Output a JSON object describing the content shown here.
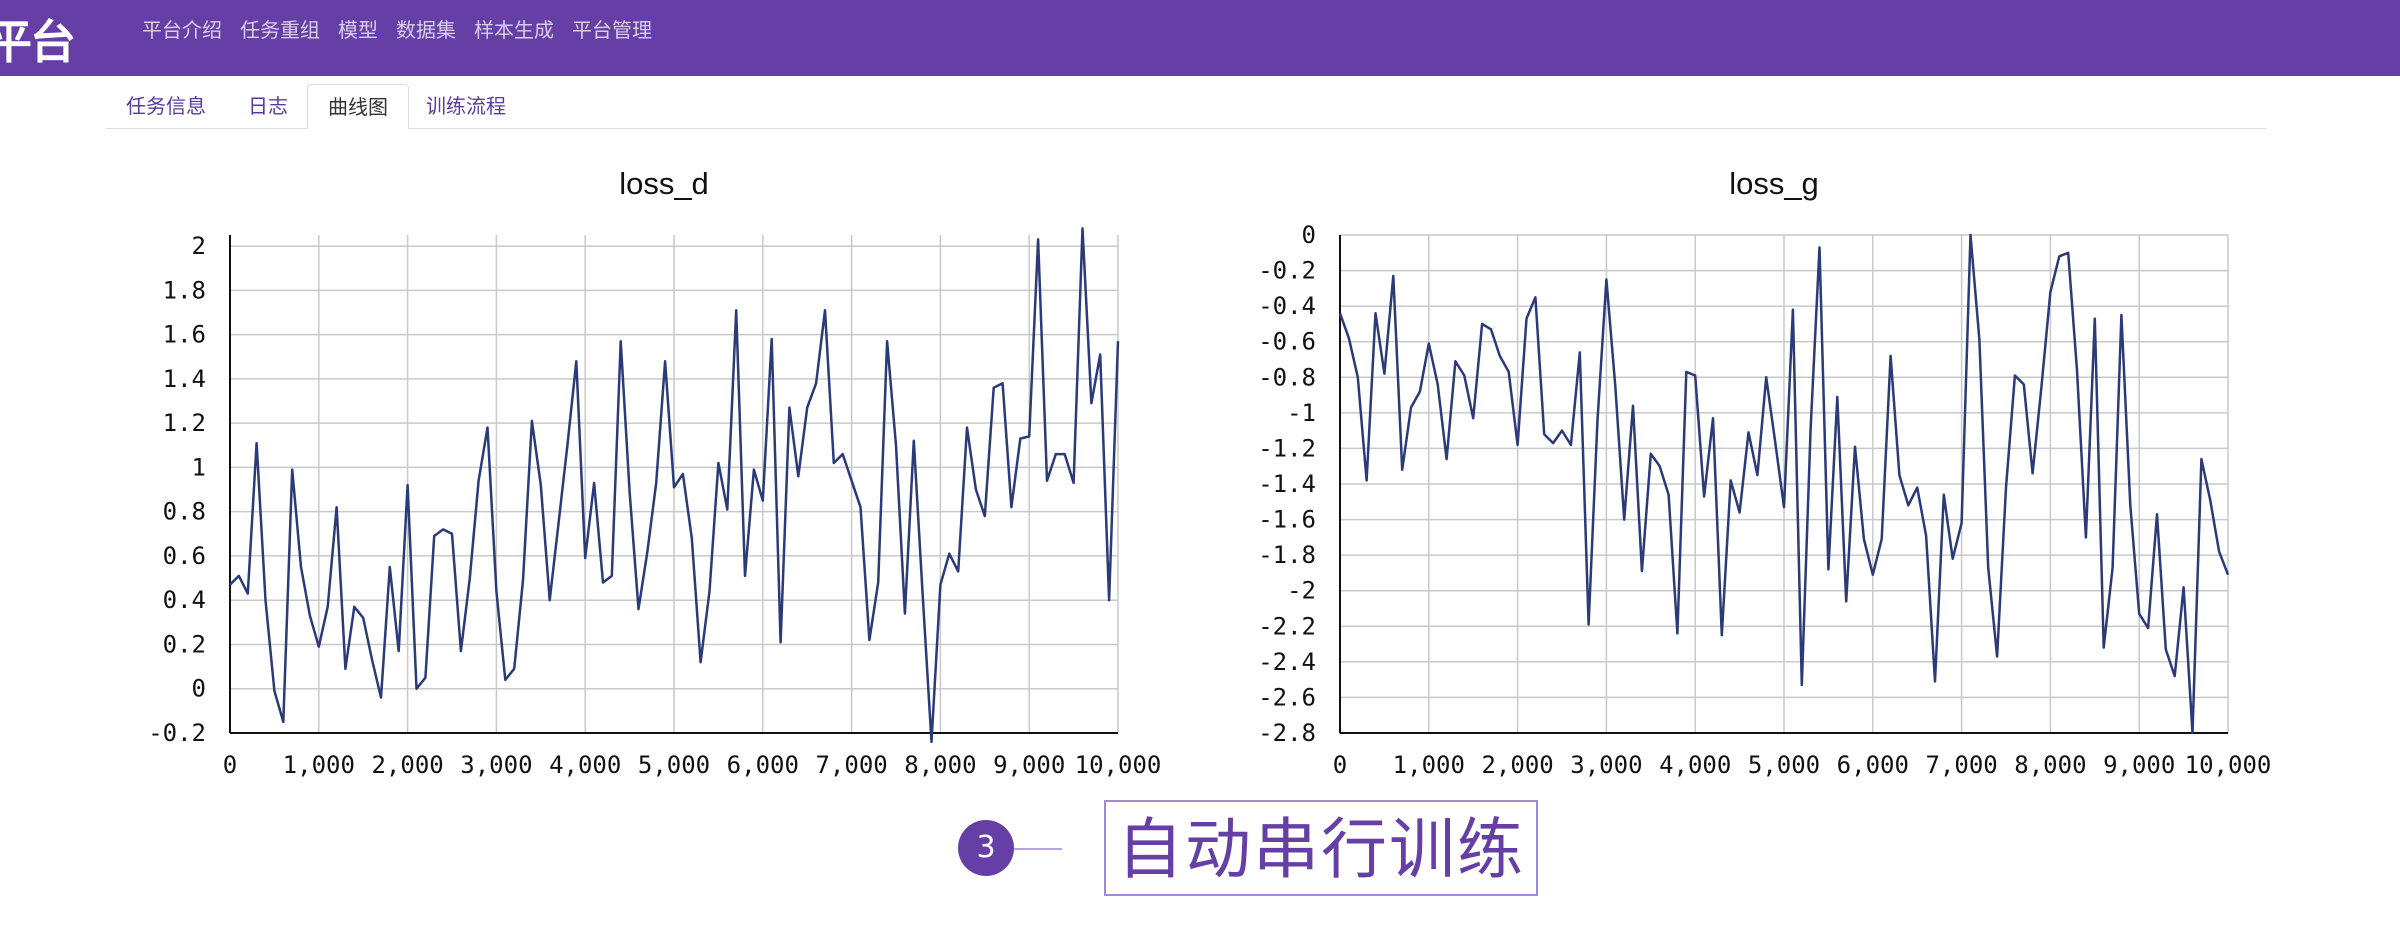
{
  "header": {
    "logo": "平台",
    "nav": [
      "平台介绍",
      "任务重组",
      "模型",
      "数据集",
      "样本生成",
      "平台管理"
    ]
  },
  "tabs": [
    {
      "label": "任务信息",
      "active": false
    },
    {
      "label": "日志",
      "active": false
    },
    {
      "label": "曲线图",
      "active": true
    },
    {
      "label": "训练流程",
      "active": false
    }
  ],
  "annotation": {
    "number": "3",
    "text": "自动串行训练"
  },
  "colors": {
    "brand": "#663fa6",
    "line": "#2b3a78",
    "grid": "#c9c9c9"
  },
  "chart_data": [
    {
      "type": "line",
      "title": "loss_d",
      "xlabel": "",
      "ylabel": "",
      "xlim": [
        0,
        10000
      ],
      "ylim": [
        -0.2,
        2.05
      ],
      "x_ticks": [
        0,
        1000,
        2000,
        3000,
        4000,
        5000,
        6000,
        7000,
        8000,
        9000,
        10000
      ],
      "x_tick_labels": [
        "0",
        "1,000",
        "2,000",
        "3,000",
        "4,000",
        "5,000",
        "6,000",
        "7,000",
        "8,000",
        "9,000",
        "10,000"
      ],
      "y_ticks": [
        -0.2,
        0,
        0.2,
        0.4,
        0.6,
        0.8,
        1,
        1.2,
        1.4,
        1.6,
        1.8,
        2
      ],
      "y_tick_labels": [
        "-0.2",
        "0",
        "0.2",
        "0.4",
        "0.6",
        "0.8",
        "1",
        "1.2",
        "1.4",
        "1.6",
        "1.8",
        "2"
      ],
      "grid": true,
      "series": [
        {
          "x": [
            0,
            100,
            200,
            300,
            400,
            500,
            600,
            700,
            800,
            900,
            1000,
            1100,
            1200,
            1300,
            1400,
            1500,
            1600,
            1700,
            1800,
            1900,
            2000,
            2100,
            2200,
            2300,
            2400,
            2500,
            2600,
            2700,
            2800,
            2900,
            3000,
            3100,
            3200,
            3300,
            3400,
            3500,
            3600,
            3700,
            3800,
            3900,
            4000,
            4100,
            4200,
            4300,
            4400,
            4500,
            4600,
            4700,
            4800,
            4900,
            5000,
            5100,
            5200,
            5300,
            5400,
            5500,
            5600,
            5700,
            5800,
            5900,
            6000,
            6100,
            6200,
            6300,
            6400,
            6500,
            6600,
            6700,
            6800,
            6900,
            7000,
            7100,
            7200,
            7300,
            7400,
            7500,
            7600,
            7700,
            7800,
            7900,
            8000,
            8100,
            8200,
            8300,
            8400,
            8500,
            8600,
            8700,
            8800,
            8900,
            9000,
            9100,
            9200,
            9300,
            9400,
            9500,
            9600,
            9700,
            9800,
            9900,
            10000
          ],
          "values": [
            0.47,
            0.51,
            0.43,
            1.11,
            0.4,
            -0.01,
            -0.15,
            0.99,
            0.55,
            0.33,
            0.19,
            0.37,
            0.82,
            0.09,
            0.37,
            0.32,
            0.13,
            -0.04,
            0.55,
            0.17,
            0.92,
            0.0,
            0.05,
            0.69,
            0.72,
            0.7,
            0.17,
            0.5,
            0.94,
            1.18,
            0.44,
            0.04,
            0.09,
            0.49,
            1.21,
            0.92,
            0.4,
            0.75,
            1.1,
            1.48,
            0.59,
            0.93,
            0.48,
            0.51,
            1.57,
            0.89,
            0.36,
            0.62,
            0.93,
            1.48,
            0.91,
            0.97,
            0.68,
            0.12,
            0.44,
            1.02,
            0.81,
            1.71,
            0.51,
            0.99,
            0.85,
            1.58,
            0.21,
            1.27,
            0.96,
            1.27,
            1.38,
            1.71,
            1.02,
            1.06,
            0.94,
            0.82,
            0.22,
            0.48,
            1.57,
            1.1,
            0.34,
            1.12,
            0.43,
            -0.24,
            0.47,
            0.61,
            0.53,
            1.18,
            0.9,
            0.78,
            1.36,
            1.38,
            0.82,
            1.13,
            1.14,
            2.03,
            0.94,
            1.06,
            1.06,
            0.93,
            2.08,
            1.29,
            1.51,
            0.4,
            1.57
          ]
        }
      ]
    },
    {
      "type": "line",
      "title": "loss_g",
      "xlabel": "",
      "ylabel": "",
      "xlim": [
        0,
        10000
      ],
      "ylim": [
        -2.8,
        0
      ],
      "x_ticks": [
        0,
        1000,
        2000,
        3000,
        4000,
        5000,
        6000,
        7000,
        8000,
        9000,
        10000
      ],
      "x_tick_labels": [
        "0",
        "1,000",
        "2,000",
        "3,000",
        "4,000",
        "5,000",
        "6,000",
        "7,000",
        "8,000",
        "9,000",
        "10,000"
      ],
      "y_ticks": [
        0,
        -0.2,
        -0.4,
        -0.6,
        -0.8,
        -1,
        -1.2,
        -1.4,
        -1.6,
        -1.8,
        -2,
        -2.2,
        -2.4,
        -2.6,
        -2.8
      ],
      "y_tick_labels": [
        "0",
        "-0.2",
        "-0.4",
        "-0.6",
        "-0.8",
        "-1",
        "-1.2",
        "-1.4",
        "-1.6",
        "-1.8",
        "-2",
        "-2.2",
        "-2.4",
        "-2.6",
        "-2.8"
      ],
      "grid": true,
      "series": [
        {
          "x": [
            0,
            100,
            200,
            300,
            400,
            500,
            600,
            700,
            800,
            900,
            1000,
            1100,
            1200,
            1300,
            1400,
            1500,
            1600,
            1700,
            1800,
            1900,
            2000,
            2100,
            2200,
            2300,
            2400,
            2500,
            2600,
            2700,
            2800,
            2900,
            3000,
            3100,
            3200,
            3300,
            3400,
            3500,
            3600,
            3700,
            3800,
            3900,
            4000,
            4100,
            4200,
            4300,
            4400,
            4500,
            4600,
            4700,
            4800,
            4900,
            5000,
            5100,
            5200,
            5300,
            5400,
            5500,
            5600,
            5700,
            5800,
            5900,
            6000,
            6100,
            6200,
            6300,
            6400,
            6500,
            6600,
            6700,
            6800,
            6900,
            7000,
            7100,
            7200,
            7300,
            7400,
            7500,
            7600,
            7700,
            7800,
            7900,
            8000,
            8100,
            8200,
            8300,
            8400,
            8500,
            8600,
            8700,
            8800,
            8900,
            9000,
            9100,
            9200,
            9300,
            9400,
            9500,
            9600,
            9700,
            9800,
            9900,
            10000
          ],
          "values": [
            -0.44,
            -0.58,
            -0.8,
            -1.38,
            -0.44,
            -0.78,
            -0.23,
            -1.32,
            -0.97,
            -0.88,
            -0.61,
            -0.84,
            -1.26,
            -0.71,
            -0.79,
            -1.03,
            -0.5,
            -0.53,
            -0.68,
            -0.77,
            -1.18,
            -0.47,
            -0.35,
            -1.12,
            -1.17,
            -1.1,
            -1.18,
            -0.66,
            -2.19,
            -1.04,
            -0.25,
            -0.85,
            -1.6,
            -0.96,
            -1.89,
            -1.23,
            -1.3,
            -1.46,
            -2.24,
            -0.77,
            -0.79,
            -1.47,
            -1.03,
            -2.25,
            -1.38,
            -1.56,
            -1.11,
            -1.35,
            -0.8,
            -1.16,
            -1.53,
            -0.42,
            -2.53,
            -1.09,
            -0.07,
            -1.88,
            -0.91,
            -2.06,
            -1.19,
            -1.71,
            -1.91,
            -1.71,
            -0.68,
            -1.35,
            -1.52,
            -1.42,
            -1.69,
            -2.51,
            -1.46,
            -1.82,
            -1.62,
            0.0,
            -0.59,
            -1.87,
            -2.37,
            -1.42,
            -0.79,
            -0.84,
            -1.34,
            -0.85,
            -0.32,
            -0.12,
            -0.1,
            -0.76,
            -1.7,
            -0.47,
            -2.32,
            -1.87,
            -0.45,
            -1.52,
            -2.13,
            -2.21,
            -1.57,
            -2.33,
            -2.48,
            -1.98,
            -2.8,
            -1.26,
            -1.49,
            -1.78,
            -1.91
          ]
        }
      ]
    }
  ]
}
